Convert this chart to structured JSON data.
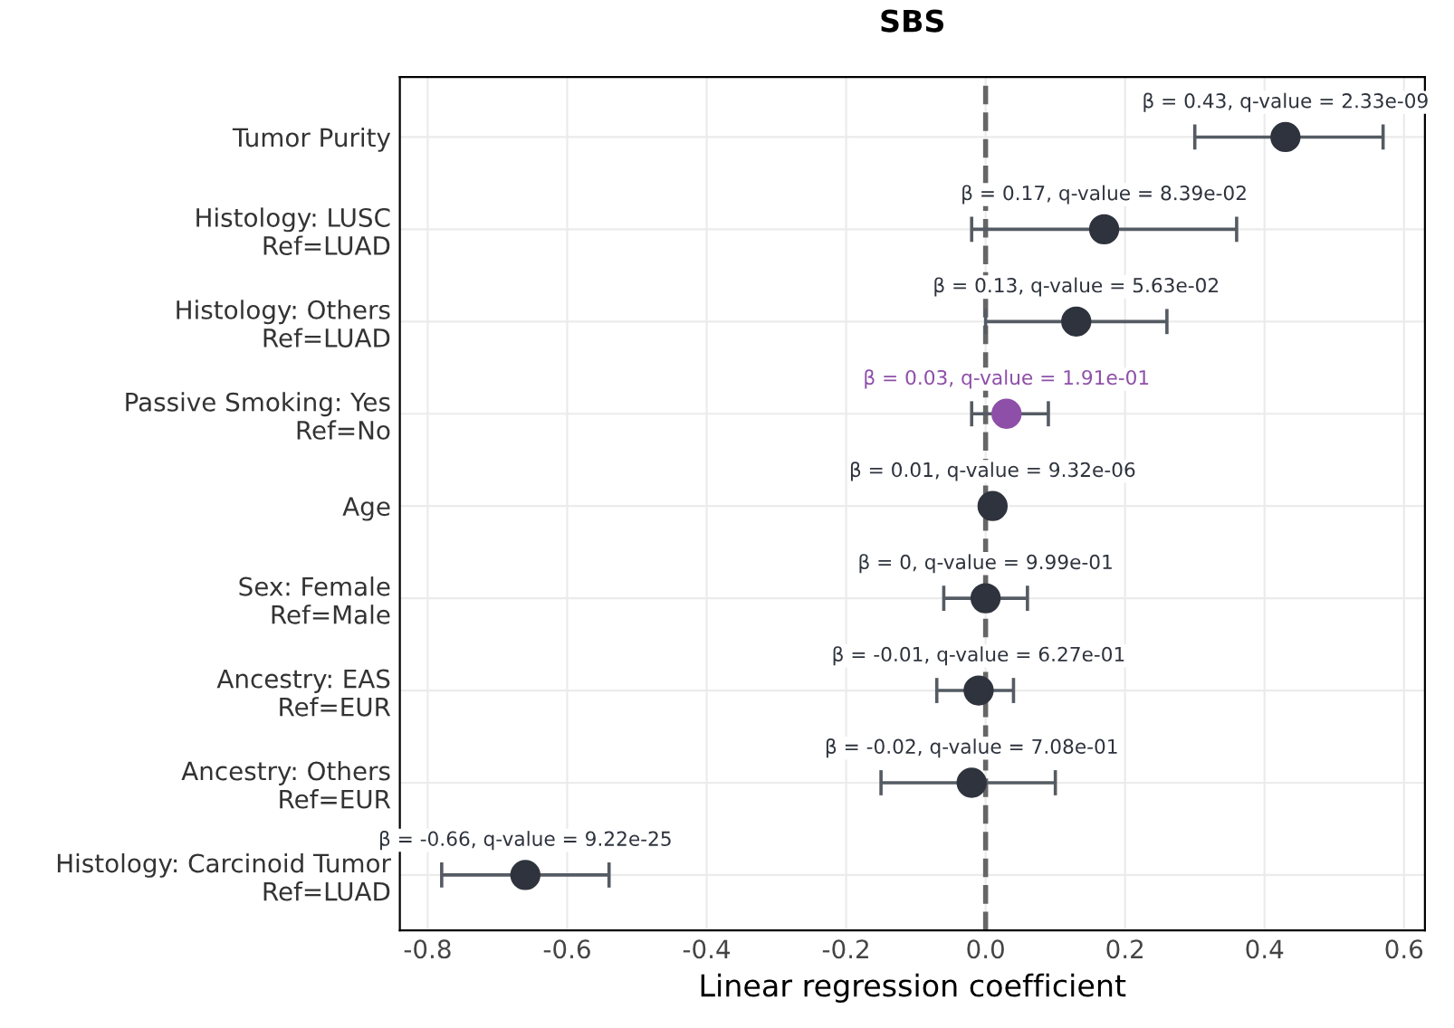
{
  "chart_data": {
    "type": "scatter",
    "orientation": "horizontal",
    "title": "SBS",
    "xlabel": "Linear regression coefficient",
    "categories": [
      "Tumor Purity",
      "Histology: LUSC\nRef=LUAD",
      "Histology: Others\nRef=LUAD",
      "Passive Smoking: Yes\nRef=No",
      "Age",
      "Sex: Female\nRef=Male",
      "Ancestry: EAS\nRef=EUR",
      "Ancestry: Others\nRef=EUR",
      "Histology: Carcinoid Tumor\nRef=LUAD"
    ],
    "values": [
      0.43,
      0.17,
      0.13,
      0.03,
      0.01,
      0,
      -0.01,
      -0.02,
      -0.66
    ],
    "errors": [
      [
        0.3,
        0.57
      ],
      [
        -0.02,
        0.36
      ],
      [
        0.0,
        0.26
      ],
      [
        -0.02,
        0.09
      ],
      null,
      [
        -0.06,
        0.06
      ],
      [
        -0.07,
        0.04
      ],
      [
        -0.15,
        0.1
      ],
      [
        -0.78,
        -0.54
      ]
    ],
    "colors": [
      "#2e333d",
      "#2e333d",
      "#2e333d",
      "#8e4fa8",
      "#2e333d",
      "#2e333d",
      "#2e333d",
      "#2e333d",
      "#2e333d"
    ],
    "annotations": [
      {
        "text": "β = 0.43, q-value = 2.33e-09",
        "x": 0.43,
        "y": "Tumor Purity"
      },
      {
        "text": "β = 0.17, q-value = 8.39e-02",
        "x": 0.17,
        "y": "Histology: LUSC\nRef=LUAD"
      },
      {
        "text": "β = 0.13, q-value = 5.63e-02",
        "x": 0.13,
        "y": "Histology: Others\nRef=LUAD"
      },
      {
        "text": "β = 0.03, q-value = 1.91e-01",
        "x": 0.03,
        "y": "Passive Smoking: Yes\nRef=No"
      },
      {
        "text": "β = 0.01, q-value = 9.32e-06",
        "x": 0.01,
        "y": "Age"
      },
      {
        "text": "β = 0, q-value = 9.99e-01",
        "x": 0,
        "y": "Sex: Female\nRef=Male"
      },
      {
        "text": "β = -0.01, q-value = 6.27e-01",
        "x": -0.01,
        "y": "Ancestry: EAS\nRef=EUR"
      },
      {
        "text": "β = -0.02, q-value = 7.08e-01",
        "x": -0.02,
        "y": "Ancestry: Others\nRef=EUR"
      },
      {
        "text": "β = -0.66, q-value = 9.22e-25",
        "x": -0.66,
        "y": "Histology: Carcinoid Tumor\nRef=LUAD"
      }
    ],
    "ref_lines": [
      {
        "axis": "x",
        "value": 0,
        "line_style": "dashed",
        "color": "#666666"
      }
    ],
    "xlim": [
      -0.84,
      0.63
    ],
    "xticks": [
      -0.8,
      -0.6,
      -0.4,
      -0.2,
      {
        "value": 0,
        "label": "0.0"
      },
      0.2,
      0.4,
      0.6
    ],
    "grid": true,
    "marker": "circle"
  }
}
